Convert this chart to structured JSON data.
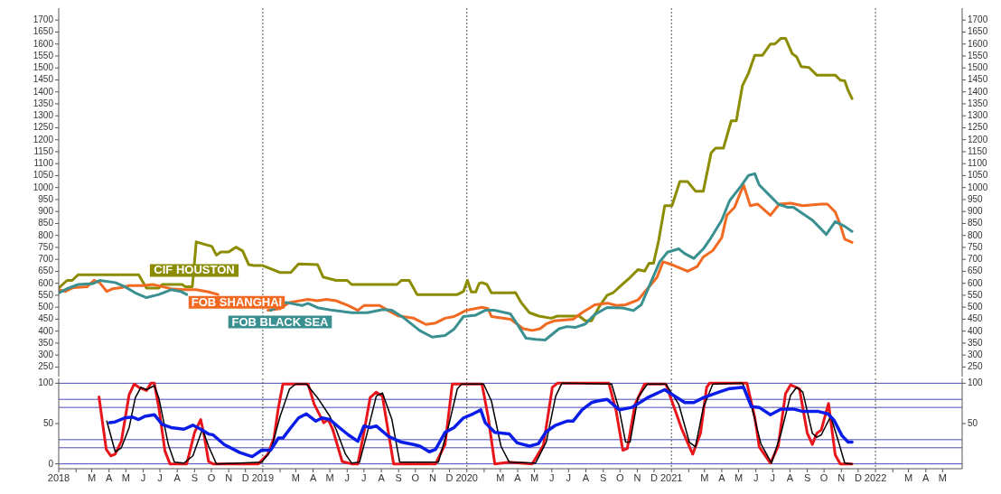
{
  "chart_data": [
    {
      "type": "line",
      "tick_labels": "y",
      "xlim": [
        "2018-01-01",
        "2022-06-05"
      ],
      "ylim": [
        210,
        1750
      ],
      "yticks": [
        250,
        300,
        350,
        400,
        450,
        500,
        550,
        600,
        650,
        700,
        750,
        800,
        850,
        900,
        950,
        1000,
        1050,
        1100,
        1150,
        1200,
        1250,
        1300,
        1350,
        1400,
        1450,
        1500,
        1550,
        1600,
        1650,
        1700
      ],
      "y2lim": [
        210,
        1750
      ],
      "y2ticks": [
        250,
        300,
        350,
        400,
        450,
        500,
        550,
        600,
        650,
        700,
        750,
        800,
        850,
        900,
        950,
        1000,
        1050,
        1100,
        1150,
        1200,
        1250,
        1300,
        1350,
        1400,
        1450,
        1500,
        1550,
        1600,
        1650,
        1700
      ],
      "legend": false,
      "ref_lines": [
        {
          "axis": "x",
          "value": "2019-01-01",
          "color": "#555555",
          "line_style": "dotted"
        },
        {
          "axis": "x",
          "value": "2020-01-01",
          "color": "#555555",
          "line_style": "dotted"
        },
        {
          "axis": "x",
          "value": "2021-01-01",
          "color": "#555555",
          "line_style": "dotted"
        },
        {
          "axis": "x",
          "value": "2022-01-01",
          "color": "#555555",
          "line_style": "dotted"
        }
      ],
      "series": [
        {
          "name": "CIF HOUSTON",
          "color": "#8c8c00",
          "x": [
            "2018-01-01",
            "2018-01-16",
            "2018-01-25",
            "2018-02-05",
            "2018-05-24",
            "2018-06-07",
            "2018-06-29",
            "2018-07-05",
            "2018-08-10",
            "2018-08-15",
            "2018-08-28",
            "2018-09-04",
            "2018-10-02",
            "2018-10-10",
            "2018-10-18",
            "2018-11-01",
            "2018-11-14",
            "2018-11-26",
            "2018-12-07",
            "2018-12-16",
            "2019-01-01",
            "2019-02-01",
            "2019-02-20",
            "2019-03-06",
            "2019-04-09",
            "2019-04-19",
            "2019-05-12",
            "2019-06-01",
            "2019-06-09",
            "2019-08-29",
            "2019-09-06",
            "2019-09-20",
            "2019-10-04",
            "2019-12-15",
            "2019-12-26",
            "2020-01-02",
            "2020-01-09",
            "2020-01-17",
            "2020-01-23",
            "2020-01-28",
            "2020-02-06",
            "2020-02-14",
            "2020-03-17",
            "2020-03-28",
            "2020-04-08",
            "2020-04-22",
            "2020-05-09",
            "2020-05-31",
            "2020-06-11",
            "2020-07-20",
            "2020-07-31",
            "2020-08-11",
            "2020-08-25",
            "2020-09-08",
            "2020-09-19",
            "2020-10-06",
            "2020-10-19",
            "2020-11-02",
            "2020-11-14",
            "2020-11-22",
            "2020-11-30",
            "2020-12-09",
            "2020-12-20",
            "2021-01-02",
            "2021-01-16",
            "2021-01-30",
            "2021-02-13",
            "2021-02-27",
            "2021-03-13",
            "2021-03-21",
            "2021-04-04",
            "2021-04-18",
            "2021-04-27",
            "2021-05-08",
            "2021-05-19",
            "2021-05-30",
            "2021-06-13",
            "2021-06-27",
            "2021-07-05",
            "2021-07-16",
            "2021-07-24",
            "2021-08-05",
            "2021-08-13",
            "2021-08-21",
            "2021-09-04",
            "2021-09-18",
            "2021-10-21",
            "2021-10-30",
            "2021-11-07",
            "2021-11-13",
            "2021-11-20"
          ],
          "values": [
            580,
            612,
            612,
            636,
            636,
            580,
            580,
            595,
            595,
            586,
            586,
            773,
            754,
            718,
            731,
            731,
            751,
            735,
            678,
            674,
            674,
            645,
            645,
            681,
            678,
            626,
            612,
            612,
            595,
            595,
            612,
            612,
            553,
            553,
            566,
            612,
            564,
            564,
            599,
            603,
            595,
            560,
            560,
            561,
            517,
            477,
            463,
            454,
            463,
            463,
            443,
            443,
            503,
            550,
            561,
            597,
            624,
            657,
            651,
            684,
            684,
            777,
            924,
            924,
            1025,
            1025,
            985,
            985,
            1145,
            1165,
            1165,
            1279,
            1279,
            1426,
            1479,
            1553,
            1553,
            1600,
            1600,
            1624,
            1624,
            1560,
            1546,
            1506,
            1502,
            1470,
            1470,
            1449,
            1446,
            1406,
            1372
          ]
        },
        {
          "name": "FOB SHANGHAI",
          "color": "#f26a21",
          "x": [
            "2018-01-01",
            "2018-01-13",
            "2018-01-27",
            "2018-02-21",
            "2018-03-05",
            "2018-03-15",
            "2018-03-28",
            "2018-04-07",
            "2018-04-23",
            "2018-05-07",
            "2018-06-01",
            "2018-06-18",
            "2018-07-05",
            "2018-07-21",
            "2018-08-13",
            "2018-09-04",
            "2018-09-26",
            "2018-10-13",
            "2018-12-02",
            "2019-01-10",
            "2019-02-01",
            "2019-02-18",
            "2019-03-23",
            "2019-04-09",
            "2019-04-25",
            "2019-05-12",
            "2019-06-03",
            "2019-06-20",
            "2019-07-01",
            "2019-07-29",
            "2019-08-14",
            "2019-08-31",
            "2019-09-28",
            "2019-10-20",
            "2019-11-06",
            "2019-11-23",
            "2019-12-09",
            "2019-12-31",
            "2020-01-28",
            "2020-02-08",
            "2020-02-14",
            "2020-03-19",
            "2020-04-11",
            "2020-04-27",
            "2020-05-11",
            "2020-05-22",
            "2020-06-05",
            "2020-07-09",
            "2020-07-25",
            "2020-08-17",
            "2020-09-08",
            "2020-09-25",
            "2020-10-11",
            "2020-11-02",
            "2020-11-19",
            "2020-12-06",
            "2020-12-17",
            "2021-01-03",
            "2021-01-30",
            "2021-02-16",
            "2021-02-27",
            "2021-03-16",
            "2021-04-01",
            "2021-04-10",
            "2021-04-24",
            "2021-05-10",
            "2021-05-22",
            "2021-06-04",
            "2021-06-27",
            "2021-07-13",
            "2021-08-02",
            "2021-08-24",
            "2021-09-26",
            "2021-10-07",
            "2021-10-21",
            "2021-10-30",
            "2021-11-07",
            "2021-11-20"
          ],
          "values": [
            573,
            566,
            582,
            586,
            612,
            603,
            566,
            577,
            582,
            590,
            590,
            595,
            586,
            577,
            573,
            573,
            564,
            553,
            null,
            487,
            494,
            520,
            533,
            527,
            533,
            527,
            507,
            487,
            507,
            507,
            485,
            464,
            454,
            428,
            434,
            454,
            461,
            487,
            500,
            494,
            461,
            450,
            410,
            403,
            410,
            430,
            443,
            450,
            477,
            510,
            517,
            507,
            510,
            530,
            577,
            624,
            690,
            677,
            650,
            670,
            710,
            737,
            791,
            884,
            918,
            1011,
            924,
            931,
            884,
            931,
            935,
            924,
            931,
            931,
            898,
            844,
            784,
            771
          ]
        },
        {
          "name": "FOB BLACK SEA",
          "color": "#3a9090",
          "x": [
            "2018-01-01",
            "2018-01-19",
            "2018-02-05",
            "2018-03-04",
            "2018-03-15",
            "2018-04-12",
            "2018-04-29",
            "2018-05-18",
            "2018-06-07",
            "2018-06-29",
            "2018-07-21",
            "2018-08-07",
            "2018-08-18",
            "2018-10-24",
            "2018-11-26",
            "2018-12-24",
            "2019-01-15",
            "2019-02-12",
            "2019-03-12",
            "2019-03-23",
            "2019-04-09",
            "2019-05-06",
            "2019-06-09",
            "2019-07-07",
            "2019-08-04",
            "2019-08-20",
            "2019-09-11",
            "2019-10-09",
            "2019-10-31",
            "2019-11-23",
            "2019-12-09",
            "2019-12-26",
            "2020-01-17",
            "2020-02-03",
            "2020-02-20",
            "2020-03-19",
            "2020-03-31",
            "2020-04-16",
            "2020-05-03",
            "2020-05-20",
            "2020-06-14",
            "2020-06-28",
            "2020-07-14",
            "2020-07-31",
            "2020-08-17",
            "2020-09-08",
            "2020-10-06",
            "2020-10-25",
            "2020-11-08",
            "2020-11-25",
            "2020-12-11",
            "2020-12-25",
            "2021-01-14",
            "2021-01-25",
            "2021-02-10",
            "2021-02-27",
            "2021-03-13",
            "2021-04-01",
            "2021-04-15",
            "2021-05-05",
            "2021-05-19",
            "2021-05-30",
            "2021-06-07",
            "2021-06-24",
            "2021-07-11",
            "2021-07-27",
            "2021-08-07",
            "2021-09-10",
            "2021-09-21",
            "2021-10-05",
            "2021-10-13",
            "2021-10-21",
            "2021-11-07",
            "2021-11-20"
          ],
          "values": [
            560,
            580,
            595,
            599,
            612,
            603,
            586,
            560,
            540,
            553,
            573,
            566,
            553,
            null,
            null,
            null,
            487,
            520,
            507,
            516,
            498,
            487,
            477,
            477,
            490,
            487,
            454,
            402,
            375,
            382,
            408,
            461,
            467,
            487,
            487,
            472,
            430,
            370,
            366,
            363,
            410,
            419,
            416,
            430,
            470,
            499,
            497,
            486,
            510,
            603,
            690,
            730,
            744,
            724,
            704,
            744,
            791,
            864,
            945,
            1005,
            1051,
            1058,
            1011,
            971,
            931,
            918,
            918,
            864,
            838,
            804,
            831,
            858,
            838,
            817
          ]
        }
      ]
    },
    {
      "type": "line",
      "xlim": [
        "2018-01-01",
        "2022-06-05"
      ],
      "ylim": [
        -6,
        106
      ],
      "yticks": [
        0,
        50,
        100
      ],
      "y2lim": [
        -6,
        106
      ],
      "y2ticks": [
        50,
        100
      ],
      "legend": false,
      "xticks": [
        {
          "value": "2018-01-01",
          "label": "2018"
        },
        {
          "value": "2018-02-01",
          "label": null
        },
        {
          "value": "2018-03-01",
          "label": "M"
        },
        {
          "value": "2018-04-01",
          "label": "A"
        },
        {
          "value": "2018-05-01",
          "label": "M"
        },
        {
          "value": "2018-06-01",
          "label": "J"
        },
        {
          "value": "2018-07-01",
          "label": "J"
        },
        {
          "value": "2018-08-01",
          "label": "A"
        },
        {
          "value": "2018-09-01",
          "label": "S"
        },
        {
          "value": "2018-10-01",
          "label": "O"
        },
        {
          "value": "2018-11-01",
          "label": "N"
        },
        {
          "value": "2018-12-01",
          "label": "D"
        },
        {
          "value": "2019-01-01",
          "label": "2019"
        },
        {
          "value": "2019-02-01",
          "label": null
        },
        {
          "value": "2019-03-01",
          "label": "M"
        },
        {
          "value": "2019-04-01",
          "label": "A"
        },
        {
          "value": "2019-05-01",
          "label": "M"
        },
        {
          "value": "2019-06-01",
          "label": "J"
        },
        {
          "value": "2019-07-01",
          "label": "J"
        },
        {
          "value": "2019-08-01",
          "label": "A"
        },
        {
          "value": "2019-09-01",
          "label": "S"
        },
        {
          "value": "2019-10-01",
          "label": "O"
        },
        {
          "value": "2019-11-01",
          "label": "N"
        },
        {
          "value": "2019-12-01",
          "label": "D"
        },
        {
          "value": "2020-01-01",
          "label": "2020"
        },
        {
          "value": "2020-02-01",
          "label": null
        },
        {
          "value": "2020-03-01",
          "label": "M"
        },
        {
          "value": "2020-04-01",
          "label": "A"
        },
        {
          "value": "2020-05-01",
          "label": "M"
        },
        {
          "value": "2020-06-01",
          "label": "J"
        },
        {
          "value": "2020-07-01",
          "label": "J"
        },
        {
          "value": "2020-08-01",
          "label": "A"
        },
        {
          "value": "2020-09-01",
          "label": "S"
        },
        {
          "value": "2020-10-01",
          "label": "O"
        },
        {
          "value": "2020-11-01",
          "label": "N"
        },
        {
          "value": "2020-12-01",
          "label": "D"
        },
        {
          "value": "2021-01-01",
          "label": "2021"
        },
        {
          "value": "2021-02-01",
          "label": null
        },
        {
          "value": "2021-03-01",
          "label": "M"
        },
        {
          "value": "2021-04-01",
          "label": "A"
        },
        {
          "value": "2021-05-01",
          "label": "M"
        },
        {
          "value": "2021-06-01",
          "label": "J"
        },
        {
          "value": "2021-07-01",
          "label": "J"
        },
        {
          "value": "2021-08-01",
          "label": "A"
        },
        {
          "value": "2021-09-01",
          "label": "S"
        },
        {
          "value": "2021-10-01",
          "label": "O"
        },
        {
          "value": "2021-11-01",
          "label": "N"
        },
        {
          "value": "2021-12-01",
          "label": "D"
        },
        {
          "value": "2022-01-01",
          "label": "2022"
        },
        {
          "value": "2022-02-01",
          "label": null
        },
        {
          "value": "2022-03-01",
          "label": "M"
        },
        {
          "value": "2022-04-01",
          "label": "A"
        },
        {
          "value": "2022-05-01",
          "label": "M"
        }
      ],
      "ref_lines": [
        {
          "axis": "y",
          "value": 0,
          "color": "#4a4ab8",
          "line_style": "solid"
        },
        {
          "axis": "y",
          "value": 20,
          "color": "#4a4ab8",
          "line_style": "solid"
        },
        {
          "axis": "y",
          "value": 30,
          "color": "#4a4ab8",
          "line_style": "solid"
        },
        {
          "axis": "y",
          "value": 70,
          "color": "#4a4ab8",
          "line_style": "solid"
        },
        {
          "axis": "y",
          "value": 80,
          "color": "#4a4ab8",
          "line_style": "solid"
        },
        {
          "axis": "y",
          "value": 100,
          "color": "#4a4ab8",
          "line_style": "solid"
        },
        {
          "axis": "x",
          "value": "2019-01-01",
          "color": "#555555",
          "line_style": "dotted"
        },
        {
          "axis": "x",
          "value": "2020-01-01",
          "color": "#555555",
          "line_style": "dotted"
        },
        {
          "axis": "x",
          "value": "2021-01-01",
          "color": "#555555",
          "line_style": "dotted"
        },
        {
          "axis": "x",
          "value": "2022-01-01",
          "color": "#555555",
          "line_style": "dotted"
        }
      ],
      "series": [
        {
          "color": "#e8161b",
          "x": [
            "2018-03-14",
            "2018-03-27",
            "2018-04-04",
            "2018-04-12",
            "2018-04-23",
            "2018-05-07",
            "2018-05-16",
            "2018-05-24",
            "2018-06-07",
            "2018-06-15",
            "2018-06-21",
            "2018-06-29",
            "2018-07-10",
            "2018-07-19",
            "2018-08-18",
            "2018-09-01",
            "2018-09-12",
            "2018-09-18",
            "2018-09-26",
            "2018-10-04",
            "2018-12-24",
            "2019-01-10",
            "2019-01-21",
            "2019-01-29",
            "2019-02-06",
            "2019-03-23",
            "2019-04-03",
            "2019-04-20",
            "2019-04-28",
            "2019-05-06",
            "2019-05-23",
            "2019-06-09",
            "2019-06-20",
            "2019-07-01",
            "2019-07-12",
            "2019-07-23",
            "2019-08-03",
            "2019-08-23",
            "2019-11-06",
            "2019-11-23",
            "2019-12-06",
            "2020-01-28",
            "2020-02-08",
            "2020-02-20",
            "2020-03-17",
            "2020-04-27",
            "2020-05-17",
            "2020-06-02",
            "2020-06-11",
            "2020-09-11",
            "2020-09-24",
            "2020-10-06",
            "2020-10-14",
            "2020-10-28",
            "2020-11-14",
            "2020-12-22",
            "2021-01-19",
            "2021-02-08",
            "2021-02-22",
            "2021-03-05",
            "2021-03-10",
            "2021-05-16",
            "2021-05-30",
            "2021-06-07",
            "2021-06-27",
            "2021-07-11",
            "2021-07-24",
            "2021-08-02",
            "2021-08-18",
            "2021-09-01",
            "2021-09-10",
            "2021-09-18",
            "2021-09-26",
            "2021-10-09",
            "2021-10-21",
            "2021-10-30",
            "2021-11-20"
          ],
          "values": [
            83,
            18,
            10,
            12,
            28,
            86,
            99,
            95,
            91,
            100,
            100,
            70,
            16,
            0,
            0,
            39,
            55,
            36,
            3,
            0,
            0,
            12,
            32,
            70,
            99,
            99,
            74,
            51,
            55,
            43,
            3,
            0,
            0,
            39,
            82,
            89,
            84,
            0,
            0,
            24,
            99,
            99,
            59,
            0,
            2,
            0,
            23,
            95,
            100,
            100,
            66,
            17,
            19,
            74,
            99,
            99,
            44,
            12,
            38,
            95,
            100,
            100,
            58,
            21,
            1,
            22,
            87,
            98,
            93,
            38,
            24,
            38,
            42,
            75,
            11,
            0,
            0
          ]
        },
        {
          "color": "#000000",
          "x": [
            "2018-03-28",
            "2018-04-12",
            "2018-04-23",
            "2018-05-07",
            "2018-05-18",
            "2018-05-28",
            "2018-06-07",
            "2018-06-21",
            "2018-06-29",
            "2018-07-16",
            "2018-07-27",
            "2018-08-13",
            "2018-08-29",
            "2018-09-15",
            "2018-09-26",
            "2018-10-10",
            "2018-12-30",
            "2019-01-15",
            "2019-02-01",
            "2019-02-18",
            "2019-03-01",
            "2019-03-20",
            "2019-04-09",
            "2019-05-01",
            "2019-05-12",
            "2019-05-29",
            "2019-06-09",
            "2019-06-23",
            "2019-07-07",
            "2019-07-23",
            "2019-08-03",
            "2019-08-20",
            "2019-09-03",
            "2019-11-11",
            "2019-11-28",
            "2019-12-15",
            "2019-12-23",
            "2020-01-31",
            "2020-02-14",
            "2020-03-02",
            "2020-03-17",
            "2020-05-03",
            "2020-05-22",
            "2020-06-08",
            "2020-06-19",
            "2020-09-16",
            "2020-09-30",
            "2020-10-11",
            "2020-10-19",
            "2020-11-02",
            "2020-11-19",
            "2020-12-22",
            "2021-01-14",
            "2021-02-02",
            "2021-02-13",
            "2021-02-27",
            "2021-03-16",
            "2021-05-08",
            "2021-05-22",
            "2021-06-10",
            "2021-06-29",
            "2021-07-16",
            "2021-08-02",
            "2021-08-13",
            "2021-08-24",
            "2021-09-10",
            "2021-09-18",
            "2021-09-26",
            "2021-10-13",
            "2021-10-27",
            "2021-11-07",
            "2021-11-20"
          ],
          "values": [
            53,
            15,
            20,
            45,
            82,
            95,
            92,
            97,
            82,
            24,
            2,
            1,
            10,
            43,
            22,
            0,
            2,
            16,
            59,
            93,
            99,
            99,
            82,
            59,
            43,
            12,
            1,
            2,
            39,
            84,
            88,
            55,
            2,
            2,
            43,
            93,
            99,
            99,
            78,
            22,
            2,
            1,
            27,
            84,
            100,
            99,
            66,
            27,
            27,
            82,
            99,
            99,
            74,
            27,
            21,
            70,
            99,
            100,
            78,
            25,
            1,
            38,
            85,
            95,
            89,
            38,
            33,
            36,
            59,
            27,
            1,
            0
          ]
        },
        {
          "color": "#0a1de8",
          "x": [
            "2018-04-02",
            "2018-04-12",
            "2018-04-29",
            "2018-05-13",
            "2018-05-24",
            "2018-06-04",
            "2018-06-21",
            "2018-07-05",
            "2018-07-21",
            "2018-08-13",
            "2018-08-29",
            "2018-09-12",
            "2018-09-26",
            "2018-10-04",
            "2018-10-24",
            "2018-11-21",
            "2018-12-13",
            "2018-12-30",
            "2019-01-15",
            "2019-01-29",
            "2019-02-06",
            "2019-02-18",
            "2019-03-06",
            "2019-03-20",
            "2019-04-06",
            "2019-04-17",
            "2019-05-01",
            "2019-05-18",
            "2019-06-03",
            "2019-06-20",
            "2019-07-01",
            "2019-07-12",
            "2019-07-23",
            "2019-08-14",
            "2019-09-06",
            "2019-09-28",
            "2019-10-09",
            "2019-10-26",
            "2019-11-06",
            "2019-11-23",
            "2019-12-09",
            "2019-12-26",
            "2020-01-12",
            "2020-01-26",
            "2020-02-03",
            "2020-02-20",
            "2020-03-17",
            "2020-03-31",
            "2020-04-22",
            "2020-05-08",
            "2020-05-22",
            "2020-06-08",
            "2020-06-28",
            "2020-07-09",
            "2020-07-25",
            "2020-08-11",
            "2020-08-22",
            "2020-09-08",
            "2020-09-30",
            "2020-10-22",
            "2020-11-19",
            "2020-12-20",
            "2020-12-31",
            "2021-01-25",
            "2021-02-10",
            "2021-02-27",
            "2021-03-27",
            "2021-04-13",
            "2021-05-10",
            "2021-05-24",
            "2021-06-07",
            "2021-06-27",
            "2021-07-16",
            "2021-08-07",
            "2021-08-24",
            "2021-09-21",
            "2021-10-08",
            "2021-10-19",
            "2021-11-02",
            "2021-11-13",
            "2021-11-20"
          ],
          "values": [
            51,
            52,
            57,
            58,
            55,
            59,
            61,
            49,
            45,
            43,
            48,
            43,
            37,
            36,
            24,
            14,
            9,
            17,
            17,
            32,
            32,
            43,
            57,
            62,
            53,
            57,
            55,
            45,
            36,
            28,
            47,
            45,
            47,
            34,
            27,
            24,
            22,
            15,
            18,
            39,
            45,
            57,
            62,
            67,
            51,
            39,
            37,
            26,
            22,
            25,
            40,
            48,
            53,
            53,
            67,
            76,
            78,
            80,
            67,
            70,
            82,
            92,
            87,
            76,
            76,
            82,
            89,
            93,
            95,
            71,
            70,
            61,
            68,
            68,
            65,
            65,
            62,
            54,
            35,
            27,
            27
          ]
        }
      ]
    }
  ]
}
